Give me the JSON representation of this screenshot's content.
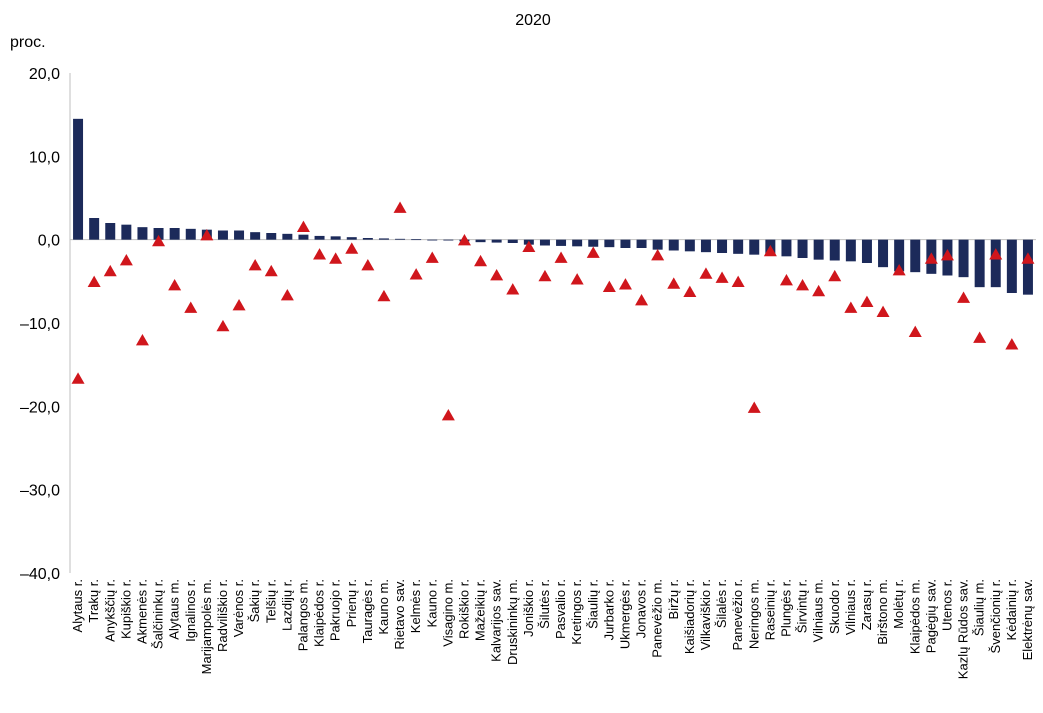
{
  "chart_data": {
    "type": "bar",
    "title": "2020",
    "ylabel": "proc.",
    "ylim": [
      -40,
      20
    ],
    "yticks": [
      "20,0",
      "10,0",
      "0,0",
      "–10,0",
      "–20,0",
      "–30,0",
      "–40,0"
    ],
    "ytick_values": [
      20,
      10,
      0,
      -10,
      -20,
      -30,
      -40
    ],
    "grid": false,
    "colors": {
      "bars": "#1c2a5a",
      "markers": "#d0161c"
    },
    "categories": [
      "Alytaus r.",
      "Trakų r.",
      "Anykščių r.",
      "Kupiškio r.",
      "Akmenės r.",
      "Šalčininkų r.",
      "Alytaus m.",
      "Ignalinos r.",
      "Marijampolės m.",
      "Radviliškio r.",
      "Varėnos r.",
      "Šakių r.",
      "Telšių r.",
      "Lazdijų r.",
      "Palangos m.",
      "Klaipėdos r.",
      "Pakruojo r.",
      "Prienų r.",
      "Tauragės r.",
      "Kauno m.",
      "Rietavo sav.",
      "Kelmės r.",
      "Kauno r.",
      "Visagino m.",
      "Rokiškio r.",
      "Mažeikių r.",
      "Kalvarijos sav.",
      "Druskininkų m.",
      "Joniškio r.",
      "Šilutės r.",
      "Pasvalio r.",
      "Kretingos r.",
      "Šiaulių r.",
      "Jurbarko r.",
      "Ukmergės r.",
      "Jonavos r.",
      "Panevėžio m.",
      "Biržų r.",
      "Kaišiadorių r.",
      "Vilkaviškio r.",
      "Šilalės r.",
      "Panevėžio r.",
      "Neringos m.",
      "Raseinių r.",
      "Plungės r.",
      "Širvintų r.",
      "Vilniaus m.",
      "Skuodo r.",
      "Vilniaus r.",
      "Zarasų r.",
      "Birštono m.",
      "Molėtų r.",
      "Klaipėdos m.",
      "Pagėgių sav.",
      "Utenos r.",
      "Kazlų Rūdos sav.",
      "Šiaulių m.",
      "Švenčionių r.",
      "Kėdainių r.",
      "Elektrėnų sav."
    ],
    "series": [
      {
        "marker": "bar",
        "values": [
          14.5,
          2.6,
          2.0,
          1.8,
          1.5,
          1.4,
          1.4,
          1.3,
          1.2,
          1.1,
          1.1,
          0.9,
          0.8,
          0.7,
          0.6,
          0.45,
          0.4,
          0.3,
          0.2,
          0.15,
          0.1,
          0.05,
          0.0,
          -0.1,
          -0.2,
          -0.3,
          -0.35,
          -0.4,
          -0.6,
          -0.7,
          -0.75,
          -0.8,
          -0.85,
          -0.9,
          -1.0,
          -1.0,
          -1.2,
          -1.3,
          -1.4,
          -1.5,
          -1.6,
          -1.7,
          -1.8,
          -1.9,
          -2.0,
          -2.2,
          -2.4,
          -2.5,
          -2.6,
          -2.8,
          -3.3,
          -3.8,
          -3.9,
          -4.1,
          -4.3,
          -4.5,
          -5.7,
          -5.7,
          -6.4,
          -6.6
        ]
      },
      {
        "marker": "triangle",
        "values": [
          -16.7,
          -5.1,
          -3.8,
          -2.5,
          -12.1,
          -0.2,
          -5.5,
          -8.2,
          0.5,
          -10.4,
          -7.9,
          -3.1,
          -3.8,
          -6.7,
          1.5,
          -1.8,
          -2.3,
          -1.1,
          -3.1,
          -6.8,
          3.8,
          -4.2,
          -2.2,
          -21.1,
          -0.1,
          -2.6,
          -4.3,
          -6.0,
          -0.9,
          -4.4,
          -2.2,
          -4.8,
          -1.6,
          -5.7,
          -5.4,
          -7.3,
          -1.9,
          -5.3,
          -6.3,
          -4.1,
          -4.6,
          -5.1,
          -20.2,
          -1.4,
          -4.9,
          -5.5,
          -6.2,
          -4.4,
          -8.2,
          -7.5,
          -8.7,
          -3.7,
          -11.1,
          -2.3,
          -1.9,
          -7.0,
          -11.8,
          -1.8,
          -12.6,
          -2.3
        ]
      }
    ]
  }
}
